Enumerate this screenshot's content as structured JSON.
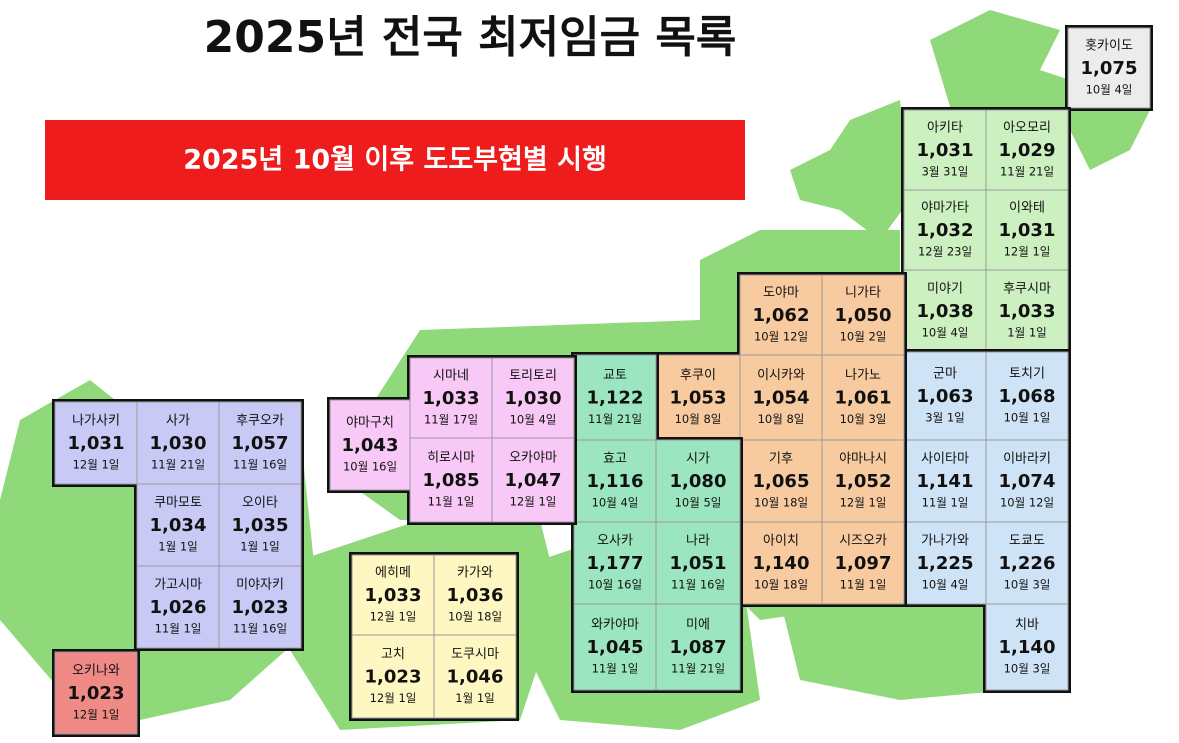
{
  "header": {
    "title": "2025년 전국 최저임금 목록",
    "banner": "2025년 10월 이후 도도부현별 시행"
  },
  "regions": [
    {
      "name": "홋카이도",
      "wage": "1,075",
      "date": "10월 4일"
    },
    {
      "name": "아키타",
      "wage": "1,031",
      "date": "3월 31일"
    },
    {
      "name": "아오모리",
      "wage": "1,029",
      "date": "11월 21일"
    },
    {
      "name": "야마가타",
      "wage": "1,032",
      "date": "12월 23일"
    },
    {
      "name": "이와테",
      "wage": "1,031",
      "date": "12월 1일"
    },
    {
      "name": "미야기",
      "wage": "1,038",
      "date": "10월 4일"
    },
    {
      "name": "후쿠시마",
      "wage": "1,033",
      "date": "1월 1일"
    },
    {
      "name": "군마",
      "wage": "1,063",
      "date": "3월 1일"
    },
    {
      "name": "토치기",
      "wage": "1,068",
      "date": "10월 1일"
    },
    {
      "name": "사이타마",
      "wage": "1,141",
      "date": "11월 1일"
    },
    {
      "name": "이바라키",
      "wage": "1,074",
      "date": "10월 12일"
    },
    {
      "name": "가나가와",
      "wage": "1,225",
      "date": "10월 4일"
    },
    {
      "name": "도쿄도",
      "wage": "1,226",
      "date": "10월 3일"
    },
    {
      "name": "치바",
      "wage": "1,140",
      "date": "10월 3일"
    },
    {
      "name": "도야마",
      "wage": "1,062",
      "date": "10월 12일"
    },
    {
      "name": "니가타",
      "wage": "1,050",
      "date": "10월 2일"
    },
    {
      "name": "이시카와",
      "wage": "1,054",
      "date": "10월 8일"
    },
    {
      "name": "나가노",
      "wage": "1,061",
      "date": "10월 3일"
    },
    {
      "name": "기후",
      "wage": "1,065",
      "date": "10월 18일"
    },
    {
      "name": "야마나시",
      "wage": "1,052",
      "date": "12월 1일"
    },
    {
      "name": "아이치",
      "wage": "1,140",
      "date": "10월 18일"
    },
    {
      "name": "시즈오카",
      "wage": "1,097",
      "date": "11월 1일"
    },
    {
      "name": "후쿠이",
      "wage": "1,053",
      "date": "10월 8일"
    },
    {
      "name": "교토",
      "wage": "1,122",
      "date": "11월 21일"
    },
    {
      "name": "효고",
      "wage": "1,116",
      "date": "10월 4일"
    },
    {
      "name": "시가",
      "wage": "1,080",
      "date": "10월 5일"
    },
    {
      "name": "오사카",
      "wage": "1,177",
      "date": "10월 16일"
    },
    {
      "name": "나라",
      "wage": "1,051",
      "date": "11월 16일"
    },
    {
      "name": "와카야마",
      "wage": "1,045",
      "date": "11월 1일"
    },
    {
      "name": "미에",
      "wage": "1,087",
      "date": "11월 21일"
    },
    {
      "name": "야마구치",
      "wage": "1,043",
      "date": "10월 16일"
    },
    {
      "name": "시마네",
      "wage": "1,033",
      "date": "11월 17일"
    },
    {
      "name": "토리토리",
      "wage": "1,030",
      "date": "10월 4일"
    },
    {
      "name": "히로시마",
      "wage": "1,085",
      "date": "11월 1일"
    },
    {
      "name": "오카야마",
      "wage": "1,047",
      "date": "12월 1일"
    },
    {
      "name": "에히메",
      "wage": "1,033",
      "date": "12월 1일"
    },
    {
      "name": "카가와",
      "wage": "1,036",
      "date": "10월 18일"
    },
    {
      "name": "고치",
      "wage": "1,023",
      "date": "12월 1일"
    },
    {
      "name": "도쿠시마",
      "wage": "1,046",
      "date": "1월 1일"
    },
    {
      "name": "나가사키",
      "wage": "1,031",
      "date": "12월 1일"
    },
    {
      "name": "사가",
      "wage": "1,030",
      "date": "11월 21일"
    },
    {
      "name": "후쿠오카",
      "wage": "1,057",
      "date": "11월 16일"
    },
    {
      "name": "쿠마모토",
      "wage": "1,034",
      "date": "1월 1일"
    },
    {
      "name": "오이타",
      "wage": "1,035",
      "date": "1월 1일"
    },
    {
      "name": "가고시마",
      "wage": "1,026",
      "date": "11월 1일"
    },
    {
      "name": "미야자키",
      "wage": "1,023",
      "date": "11월 16일"
    },
    {
      "name": "오키나와",
      "wage": "1,023",
      "date": "12월 1일"
    }
  ]
}
